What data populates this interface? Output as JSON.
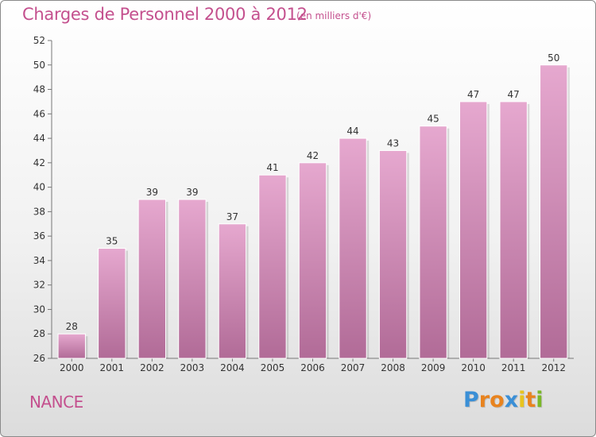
{
  "header": {
    "title": "Charges de Personnel 2000 à 2012",
    "subtitle": "(en milliers d'€)"
  },
  "footer": {
    "location": "NANCE",
    "brand": {
      "letters": [
        "P",
        "r",
        "o",
        "x",
        "i",
        "t",
        "i"
      ],
      "colors": [
        "#3a8fd6",
        "#e8831e",
        "#e8831e",
        "#3a8fd6",
        "#e8c41e",
        "#e8831e",
        "#7ab828"
      ]
    }
  },
  "chart_data": {
    "type": "bar",
    "categories": [
      "2000",
      "2001",
      "2002",
      "2003",
      "2004",
      "2005",
      "2006",
      "2007",
      "2008",
      "2009",
      "2010",
      "2011",
      "2012"
    ],
    "values": [
      28,
      35,
      39,
      39,
      37,
      41,
      42,
      44,
      43,
      45,
      47,
      47,
      50
    ],
    "title": "Charges de Personnel 2000 à 2012",
    "subtitle": "(en milliers d'€)",
    "xlabel": "",
    "ylabel": "",
    "ylim": [
      26,
      52
    ],
    "yticks": [
      26,
      28,
      30,
      32,
      34,
      36,
      38,
      40,
      42,
      44,
      46,
      48,
      50,
      52
    ],
    "grid": false,
    "data_labels": true,
    "bar_color": "#d48bb6"
  }
}
